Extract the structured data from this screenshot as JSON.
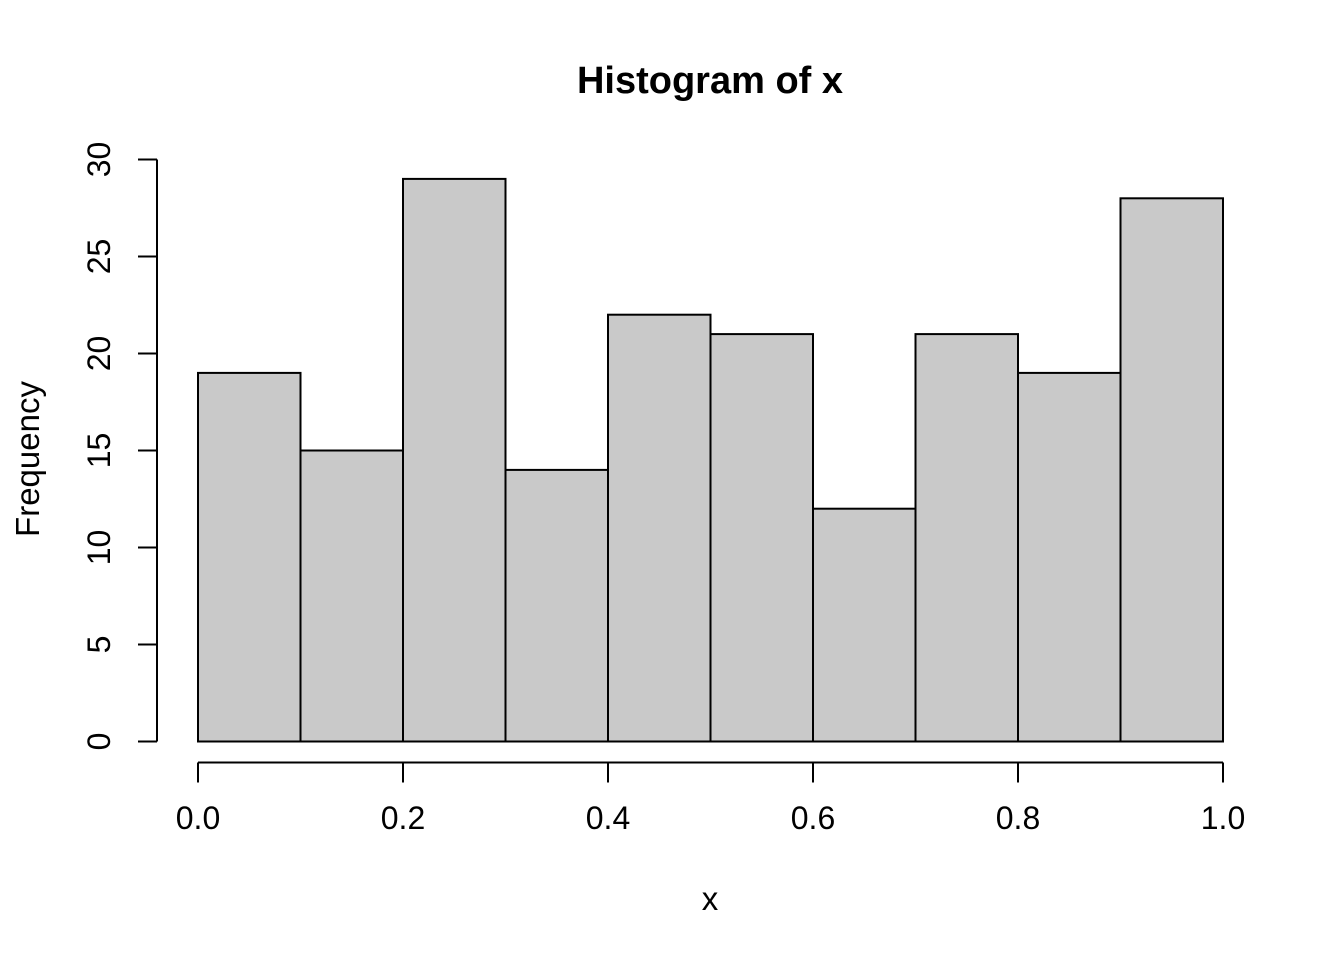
{
  "figure": {
    "background": "#FFFFFF"
  },
  "chart_data": {
    "type": "bar",
    "subtype": "histogram",
    "title": "Histogram of x",
    "xlabel": "x",
    "ylabel": "Frequency",
    "bin_edges": [
      0.0,
      0.1,
      0.2,
      0.3,
      0.4,
      0.5,
      0.6,
      0.7,
      0.8,
      0.9,
      1.0
    ],
    "counts": [
      19,
      15,
      29,
      14,
      22,
      21,
      12,
      21,
      19,
      28
    ],
    "xlim": [
      0.0,
      1.0
    ],
    "ylim": [
      0,
      30
    ],
    "x_ticks": [
      {
        "value": 0.0,
        "label": "0.0"
      },
      {
        "value": 0.2,
        "label": "0.2"
      },
      {
        "value": 0.4,
        "label": "0.4"
      },
      {
        "value": 0.6,
        "label": "0.6"
      },
      {
        "value": 0.8,
        "label": "0.8"
      },
      {
        "value": 1.0,
        "label": "1.0"
      }
    ],
    "y_ticks": [
      {
        "value": 0,
        "label": "0"
      },
      {
        "value": 5,
        "label": "5"
      },
      {
        "value": 10,
        "label": "10"
      },
      {
        "value": 15,
        "label": "15"
      },
      {
        "value": 20,
        "label": "20"
      },
      {
        "value": 25,
        "label": "25"
      },
      {
        "value": 30,
        "label": "30"
      }
    ],
    "grid": false,
    "legend_position": "none",
    "bar_fill": "#C9C9C9",
    "bar_stroke": "#000000",
    "axis_color": "#000000"
  }
}
